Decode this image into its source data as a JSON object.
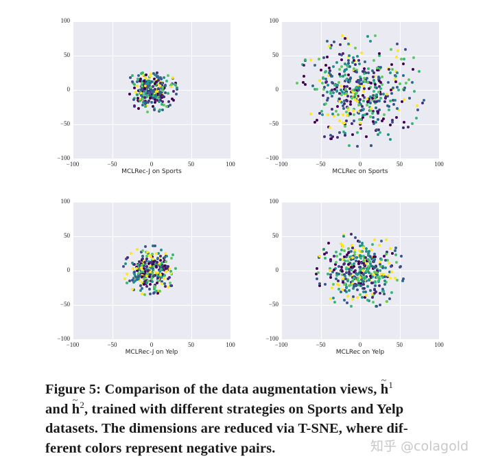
{
  "chart_data": [
    {
      "type": "scatter",
      "title": "",
      "xlabel": "MCLRec-J on Sports",
      "ylabel": "",
      "xlim": [
        -100,
        100
      ],
      "ylim": [
        -100,
        100
      ],
      "xticks": [
        -100,
        -50,
        0,
        50,
        100
      ],
      "yticks": [
        -100,
        -50,
        0,
        50,
        100
      ],
      "grid": true,
      "colormap": "viridis",
      "cluster": {
        "center": [
          0,
          0
        ],
        "radius_approx": 32,
        "n_points_approx": 300
      }
    },
    {
      "type": "scatter",
      "title": "",
      "xlabel": "MCLRec on Sports",
      "ylabel": "",
      "xlim": [
        -100,
        100
      ],
      "ylim": [
        -100,
        100
      ],
      "xticks": [
        -100,
        -50,
        0,
        50,
        100
      ],
      "yticks": [
        -100,
        -50,
        0,
        50,
        100
      ],
      "grid": true,
      "colormap": "viridis",
      "cluster": {
        "center": [
          0,
          0
        ],
        "radius_approx": 82,
        "n_points_approx": 450
      }
    },
    {
      "type": "scatter",
      "title": "",
      "xlabel": "MCLRec-J on Yelp",
      "ylabel": "",
      "xlim": [
        -100,
        100
      ],
      "ylim": [
        -100,
        100
      ],
      "xticks": [
        -100,
        -50,
        0,
        50,
        100
      ],
      "yticks": [
        -100,
        -50,
        0,
        50,
        100
      ],
      "grid": true,
      "colormap": "viridis",
      "cluster": {
        "center": [
          0,
          0
        ],
        "radius_approx": 36,
        "n_points_approx": 300
      }
    },
    {
      "type": "scatter",
      "title": "",
      "xlabel": "MCLRec on Yelp",
      "ylabel": "",
      "xlim": [
        -100,
        100
      ],
      "ylim": [
        -100,
        100
      ],
      "xticks": [
        -100,
        -50,
        0,
        50,
        100
      ],
      "yticks": [
        -100,
        -50,
        0,
        50,
        100
      ],
      "grid": true,
      "colormap": "viridis",
      "cluster": {
        "center": [
          0,
          0
        ],
        "radius_approx": 56,
        "n_points_approx": 400
      }
    }
  ],
  "tick_labels": [
    "−100",
    "−50",
    "0",
    "50",
    "100"
  ],
  "palette": [
    "#440154",
    "#3b528b",
    "#21918c",
    "#5ec962",
    "#fde725",
    "#31688e",
    "#35b779",
    "#482878"
  ],
  "caption": {
    "line1_a": "Figure 5: Comparison of the data augmentation views, ",
    "h_symbol": "h",
    "tilde": "~",
    "sup1": "1",
    "line2_a": "and ",
    "sup2": "2",
    "line2_b": ", trained with different strategies on Sports and Yelp",
    "line3": "datasets. The dimensions are reduced via T-SNE, where dif-",
    "line4": "ferent colors represent negative pairs."
  },
  "watermark": "知乎 @colagold"
}
